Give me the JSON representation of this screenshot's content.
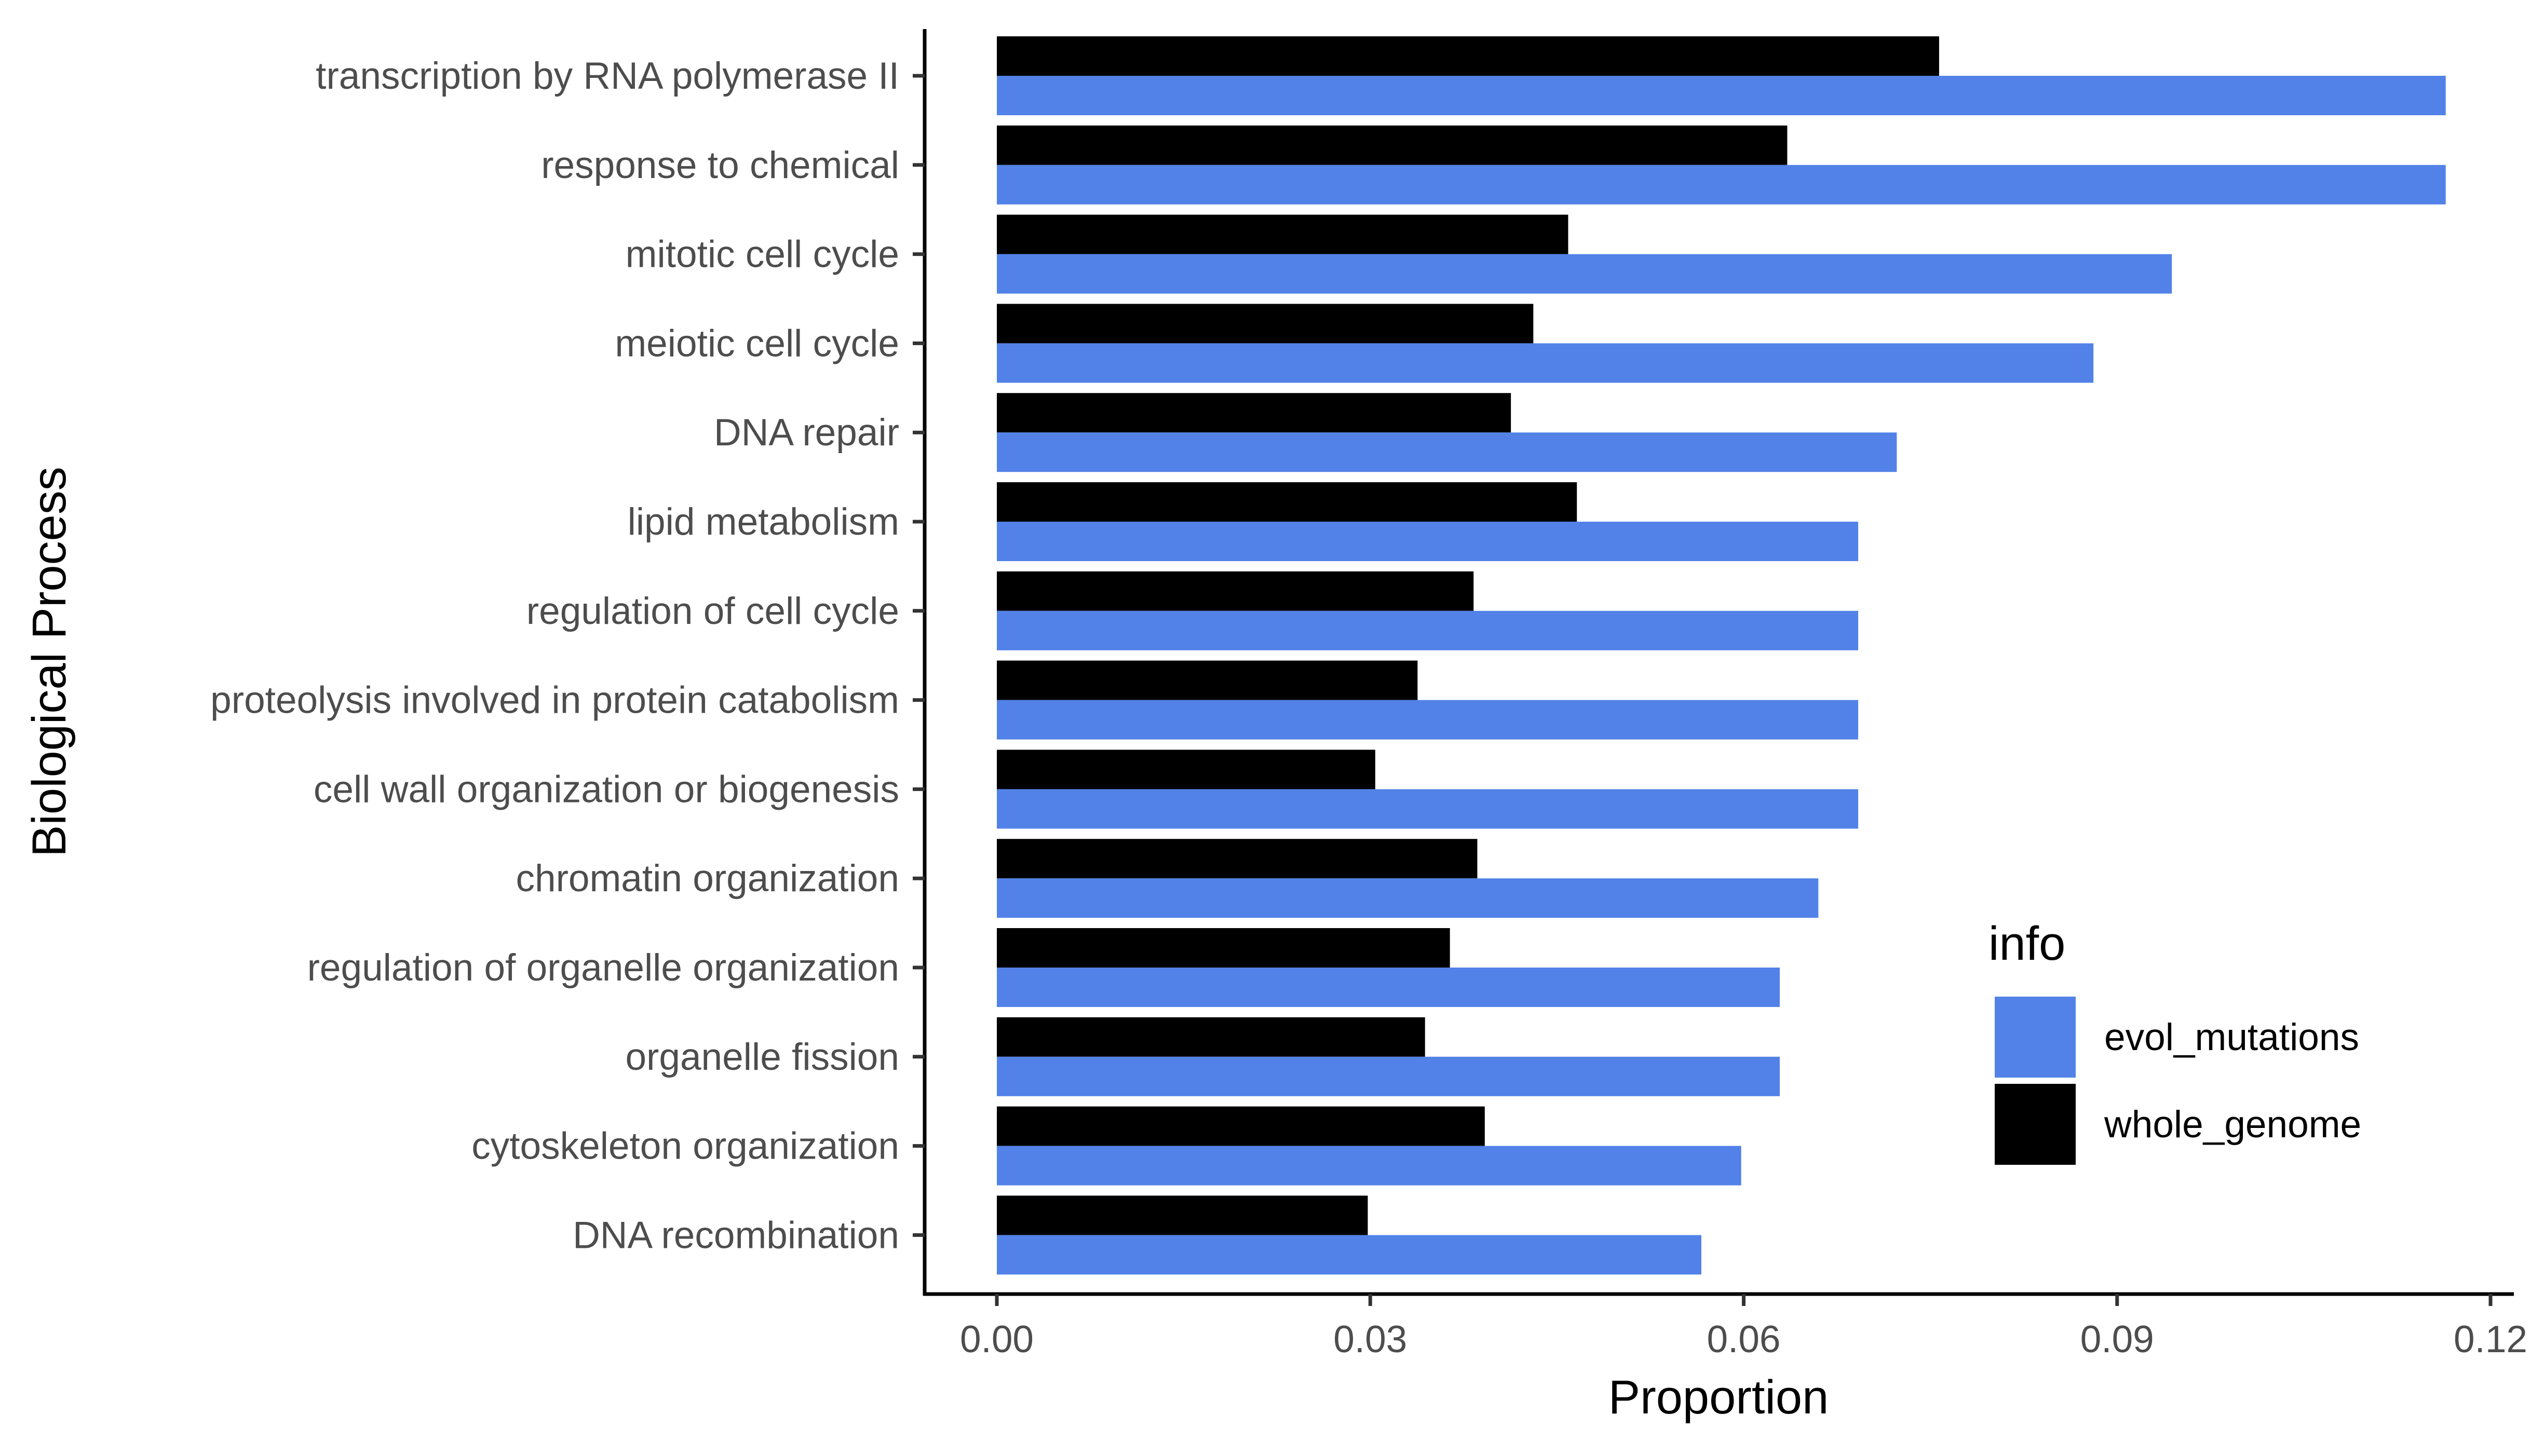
{
  "chart_data": {
    "type": "bar",
    "orientation": "horizontal",
    "title": "",
    "xlabel": "Proportion",
    "ylabel": "Biological Process",
    "xlim": [
      0,
      0.12
    ],
    "x_ticks": [
      "0.00",
      "0.03",
      "0.06",
      "0.09",
      "0.12"
    ],
    "x_tick_values": [
      0.0,
      0.03,
      0.06,
      0.09,
      0.12
    ],
    "grid": false,
    "categories": [
      "transcription by RNA polymerase II",
      "response to chemical",
      "mitotic cell cycle",
      "meiotic cell cycle",
      "DNA repair",
      "lipid metabolism",
      "regulation of cell cycle",
      "proteolysis involved in protein catabolism",
      "cell wall organization or biogenesis",
      "chromatin organization",
      "regulation of organelle organization",
      "organelle fission",
      "cytoskeleton organization",
      "DNA recombination"
    ],
    "series": [
      {
        "name": "whole_genome",
        "color": "#000000",
        "values": [
          0.0757,
          0.0635,
          0.0459,
          0.0431,
          0.0413,
          0.0466,
          0.0383,
          0.0338,
          0.0304,
          0.0386,
          0.0364,
          0.0344,
          0.0392,
          0.0298
        ]
      },
      {
        "name": "evol_mutations",
        "color": "#5282E8",
        "values": [
          0.1164,
          0.1164,
          0.0944,
          0.0881,
          0.0723,
          0.0692,
          0.0692,
          0.0692,
          0.0692,
          0.066,
          0.0629,
          0.0629,
          0.0598,
          0.0566
        ]
      }
    ],
    "legend": {
      "title": "info",
      "position": "right",
      "items": [
        {
          "label": "evol_mutations",
          "color": "#5282E8"
        },
        {
          "label": "whole_genome",
          "color": "#000000"
        }
      ]
    }
  }
}
